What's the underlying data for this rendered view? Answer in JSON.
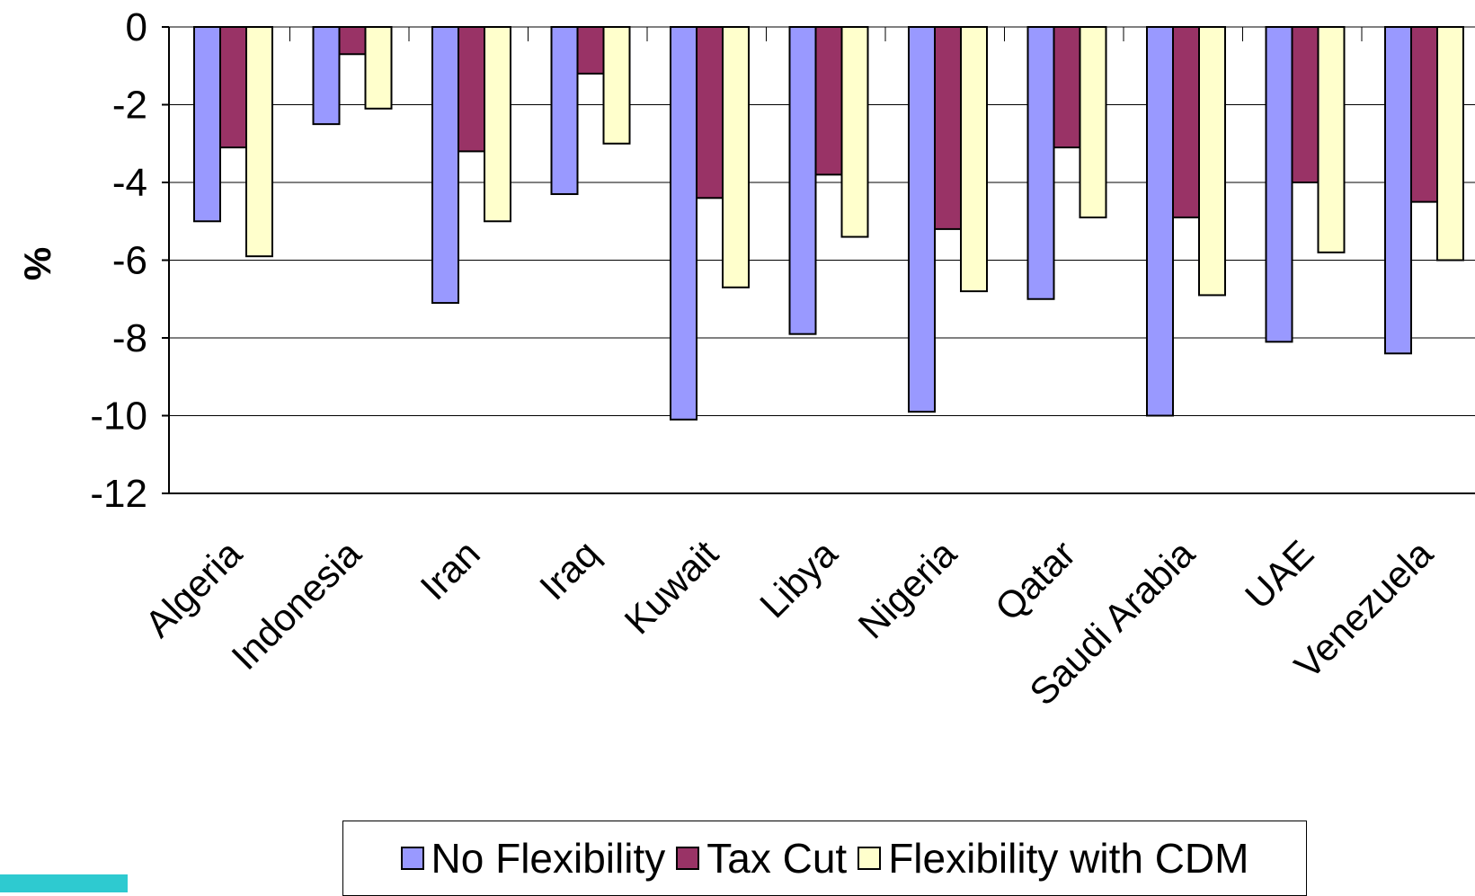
{
  "chart_data": {
    "type": "bar",
    "title": "",
    "xlabel": "",
    "ylabel": "%",
    "ylim": [
      -12,
      0
    ],
    "yticks": [
      0,
      -2,
      -4,
      -6,
      -8,
      -10,
      -12
    ],
    "grid": true,
    "legend_position": "bottom",
    "categories": [
      "Algeria",
      "Indonesia",
      "Iran",
      "Iraq",
      "Kuwait",
      "Libya",
      "Nigeria",
      "Qatar",
      "Saudi Arabia",
      "UAE",
      "Venezuela"
    ],
    "series": [
      {
        "name": "No Flexibility",
        "color": "#9999ff",
        "values": [
          -5.0,
          -2.5,
          -7.1,
          -4.3,
          -10.1,
          -7.9,
          -9.9,
          -7.0,
          -10.0,
          -8.1,
          -8.4
        ]
      },
      {
        "name": "Tax Cut",
        "color": "#993366",
        "values": [
          -3.1,
          -0.7,
          -3.2,
          -1.2,
          -4.4,
          -3.8,
          -5.2,
          -3.1,
          -4.9,
          -4.0,
          -4.5
        ]
      },
      {
        "name": "Flexibility with CDM",
        "color": "#ffffcc",
        "values": [
          -5.9,
          -2.1,
          -5.0,
          -3.0,
          -6.7,
          -5.4,
          -6.8,
          -4.9,
          -6.9,
          -5.8,
          -6.0
        ]
      }
    ]
  }
}
